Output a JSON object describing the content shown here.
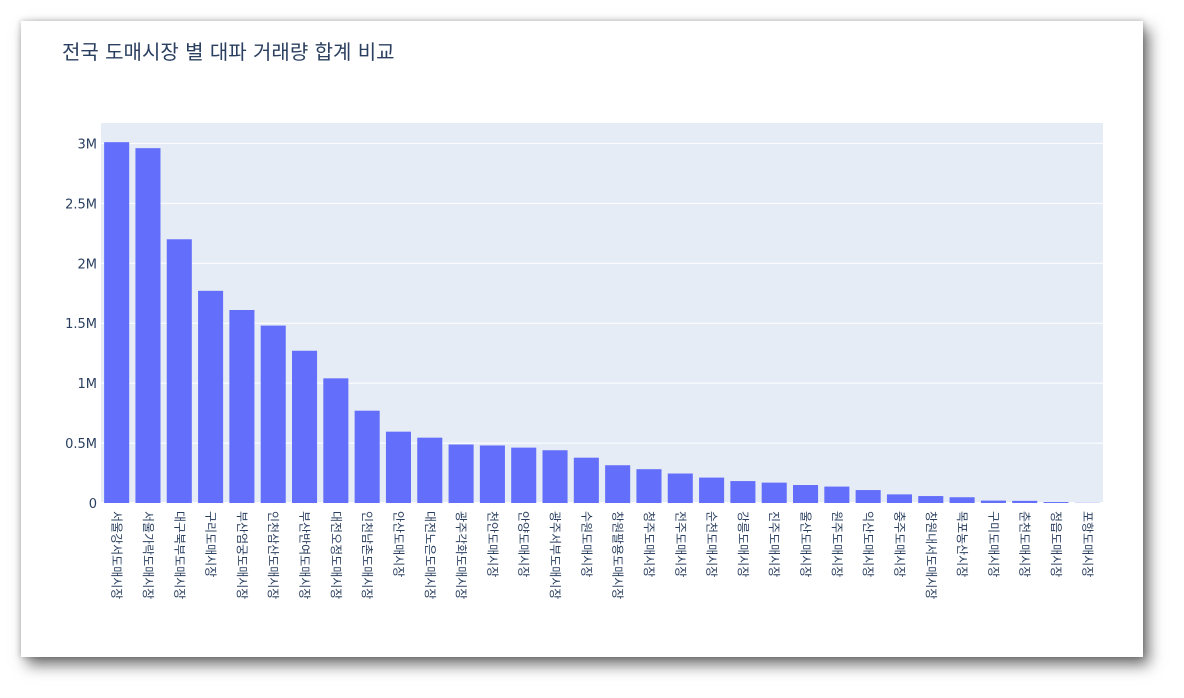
{
  "chart_data": {
    "type": "bar",
    "title": "전국 도매시장 별 대파 거래량 합계 비교",
    "xlabel": "",
    "ylabel": "",
    "ylim": [
      0,
      3170000
    ],
    "yticks": [
      {
        "value": 0,
        "label": "0"
      },
      {
        "value": 500000,
        "label": "0.5M"
      },
      {
        "value": 1000000,
        "label": "1M"
      },
      {
        "value": 1500000,
        "label": "1.5M"
      },
      {
        "value": 2000000,
        "label": "2M"
      },
      {
        "value": 2500000,
        "label": "2.5M"
      },
      {
        "value": 3000000,
        "label": "3M"
      }
    ],
    "grid": true,
    "bar_color": "#636efa",
    "plot_bg": "#e5ecf6",
    "categories": [
      "서울강서도매시장",
      "서울가락도매시장",
      "대구북부도매시장",
      "구리도매시장",
      "부산엄궁도매시장",
      "인천삼산도매시장",
      "부산반여도매시장",
      "대전오정도매시장",
      "인천남촌도매시장",
      "안산도매시장",
      "대전노은도매시장",
      "광주각화도매시장",
      "천안도매시장",
      "안양도매시장",
      "광주서부도매시장",
      "수원도매시장",
      "창원팔용도매시장",
      "청주도매시장",
      "전주도매시장",
      "순천도매시장",
      "강릉도매시장",
      "진주도매시장",
      "울산도매시장",
      "원주도매시장",
      "익산도매시장",
      "충주도매시장",
      "창원내서도매시장",
      "목포농산시장",
      "구미도매시장",
      "춘천도매시장",
      "정읍도매시장",
      "포항도매시장"
    ],
    "values": [
      3010000,
      2960000,
      2200000,
      1770000,
      1610000,
      1480000,
      1270000,
      1040000,
      770000,
      595000,
      545000,
      488000,
      480000,
      462000,
      440000,
      378000,
      315000,
      282000,
      246000,
      212000,
      183000,
      170000,
      150000,
      137000,
      108000,
      72000,
      58000,
      48000,
      20000,
      18000,
      8000,
      2000
    ]
  }
}
